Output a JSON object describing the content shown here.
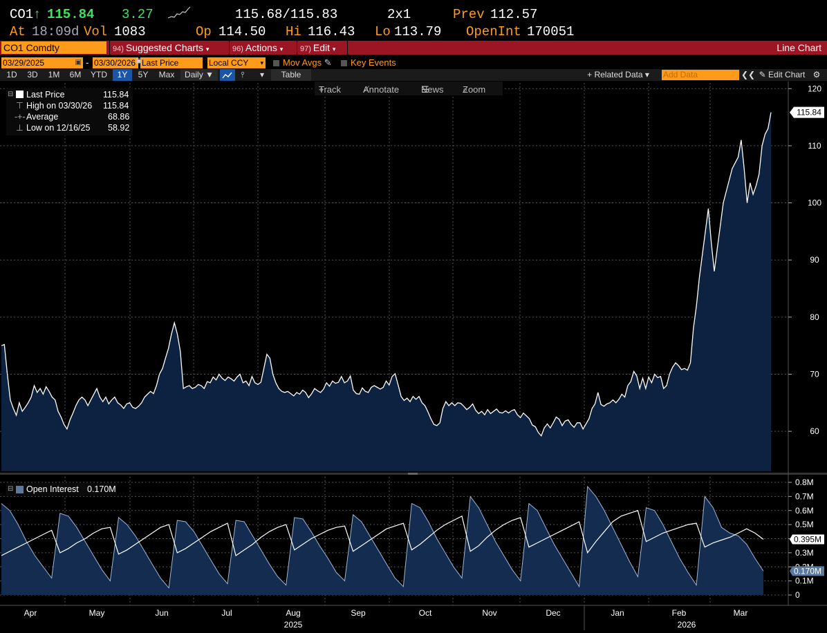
{
  "quote": {
    "ticker": "CO1",
    "arrow": "↑",
    "last": "115.84",
    "change": "3.27",
    "bid_ask": "115.68/115.83",
    "size": "2x1",
    "prev_label": "Prev",
    "prev": "112.57",
    "at_label": "At",
    "time": "18:09d",
    "vol_label": "Vol",
    "vol": "1083",
    "op_label": "Op",
    "op": "114.50",
    "hi_label": "Hi",
    "hi": "116.43",
    "lo_label": "Lo",
    "lo": "113.79",
    "oi_label": "OpenInt",
    "oi": "170051"
  },
  "function_bar": {
    "security": "CO1 Comdty",
    "suggested_num": "94)",
    "suggested": "Suggested Charts",
    "actions_num": "96)",
    "actions": "Actions",
    "edit_num": "97)",
    "edit": "Edit",
    "chart_type": "Line Chart"
  },
  "controls": {
    "start_date": "03/29/2025",
    "dash": "-",
    "end_date": "03/30/2026",
    "field": "Last Price",
    "currency": "Local CCY",
    "mov_avgs": "Mov Avgs",
    "key_events": "Key Events",
    "periods": [
      "1D",
      "3D",
      "1M",
      "6M",
      "YTD",
      "1Y",
      "5Y",
      "Max"
    ],
    "selected_period": "1Y",
    "frequency": "Daily",
    "table": "Table",
    "related_data": "+ Related Data",
    "add_data_placeholder": "Add Data",
    "edit_chart": "Edit Chart"
  },
  "tools": {
    "track": "Track",
    "annotate": "Annotate",
    "news": "News",
    "zoom": "Zoom"
  },
  "legend": {
    "last_label": "Last Price",
    "last_value": "115.84",
    "high_label": "High on 03/30/26",
    "high_value": "115.84",
    "avg_label": "Average",
    "avg_value": "68.86",
    "low_label": "Low on 12/16/25",
    "low_value": "58.92"
  },
  "oi_legend": {
    "label": "Open Interest",
    "value": "0.170M"
  },
  "colors": {
    "orange": "#ff9b1a",
    "red_bar": "#9b1525",
    "fill": "#0d2240",
    "oi_fill": "#142c50"
  },
  "chart_data": [
    {
      "type": "area",
      "title": "",
      "series": [
        {
          "name": "Last Price",
          "values": [
            75,
            75.2,
            70,
            65.5,
            64,
            62.8,
            65,
            63.5,
            64.2,
            65,
            66,
            68,
            66.8,
            67.5,
            66.5,
            67.8,
            67,
            66,
            65.5,
            63.5,
            62.5,
            61.2,
            60.4,
            62,
            63.2,
            64.5,
            65.5,
            66,
            65.5,
            64.5,
            65.5,
            66.5,
            67.5,
            66,
            65.2,
            66,
            64.8,
            65.5,
            66,
            65,
            64.6,
            64,
            64.8,
            65,
            64.2,
            64,
            64.4,
            65,
            66,
            66.5,
            67,
            66.6,
            68,
            70,
            71,
            72.8,
            74.5,
            77,
            79,
            77,
            74,
            67.5,
            67.8,
            68,
            67.5,
            67.7,
            68.2,
            68,
            67.5,
            68.7,
            68.5,
            69.5,
            69,
            70,
            69.3,
            68.9,
            69.5,
            69.2,
            68.8,
            69.5,
            70,
            68.5,
            68.8,
            68,
            69.6,
            68.5,
            68.2,
            68.6,
            71,
            73.5,
            72.8,
            70,
            68.5,
            67.5,
            67,
            66.8,
            67,
            66.6,
            66.2,
            66.8,
            66.5,
            67.2,
            66.8,
            65.9,
            66.6,
            67.5,
            67.1,
            66.8,
            67.4,
            68.5,
            67.9,
            68.8,
            68.4,
            68.6,
            69.6,
            68.5,
            68.8,
            69.7,
            67.2,
            66.6,
            66.5,
            67.6,
            67,
            66.8,
            67.7,
            68,
            67.7,
            67.4,
            67.7,
            68.8,
            68.1,
            69.6,
            70.1,
            68.1,
            66.1,
            65.4,
            65.8,
            65.2,
            66.1,
            65.6,
            66.1,
            65,
            64.5,
            63.4,
            62.2,
            61.2,
            61,
            61.5,
            64,
            65.2,
            64.5,
            65,
            64.5,
            65,
            64.9,
            64.4,
            63.8,
            64.2,
            64.8,
            63.7,
            63.1,
            63.5,
            62.9,
            63.8,
            63.1,
            63.5,
            63.9,
            63.3,
            63.2,
            63.6,
            63.2,
            63.6,
            63.8,
            62.9,
            62.4,
            63.2,
            62.7,
            62.2,
            61.1,
            60.8,
            59.8,
            59.2,
            60.6,
            61.3,
            60.6,
            61.5,
            62.5,
            62.1,
            61,
            61.8,
            62,
            61.2,
            60.7,
            61.5,
            61.5,
            60.4,
            61.3,
            62.2,
            64,
            64.8,
            66.8,
            64.7,
            64.4,
            64.8,
            65,
            65.5,
            65,
            65.6,
            66.5,
            66,
            68,
            68.7,
            70.5,
            69.7,
            67.5,
            69.3,
            67.5,
            69.5,
            68.5,
            70,
            69.4,
            69.6,
            67.5,
            68,
            70,
            71.2,
            72,
            71.5,
            70.8,
            71,
            70.7,
            72,
            78,
            82,
            87,
            91,
            95,
            99,
            93,
            88,
            92,
            96,
            100,
            102,
            104,
            106,
            107,
            108,
            111,
            106,
            100,
            103.5,
            101.5,
            103,
            105,
            110,
            112,
            113,
            115.84
          ],
          "fill": true
        }
      ],
      "x_tick_labels": [
        "Apr",
        "May",
        "Jun",
        "Jul",
        "Aug",
        "Sep",
        "Oct",
        "Nov",
        "Dec",
        "Jan",
        "Feb",
        "Mar"
      ],
      "year_labels": [
        "2025",
        "2026"
      ],
      "y_tick_labels": [
        "60",
        "70",
        "80",
        "90",
        "100",
        "110",
        "120"
      ],
      "ylim": [
        53,
        121
      ],
      "last_value_label": "115.84",
      "grid": true
    },
    {
      "type": "area",
      "title": "",
      "series": [
        {
          "name": "Open Interest",
          "values": [
            0.65,
            0.6,
            0.5,
            0.38,
            0.28,
            0.2,
            0.12,
            0.58,
            0.56,
            0.48,
            0.38,
            0.28,
            0.18,
            0.1,
            0.55,
            0.5,
            0.42,
            0.32,
            0.22,
            0.12,
            0.05,
            0.53,
            0.52,
            0.45,
            0.35,
            0.25,
            0.15,
            0.08,
            0.53,
            0.52,
            0.42,
            0.32,
            0.22,
            0.13,
            0.07,
            0.55,
            0.54,
            0.45,
            0.35,
            0.26,
            0.16,
            0.1,
            0.57,
            0.52,
            0.42,
            0.32,
            0.22,
            0.12,
            0.06,
            0.65,
            0.62,
            0.52,
            0.4,
            0.3,
            0.2,
            0.12,
            0.7,
            0.62,
            0.5,
            0.38,
            0.28,
            0.18,
            0.1,
            0.65,
            0.6,
            0.48,
            0.36,
            0.26,
            0.16,
            0.06,
            0.77,
            0.7,
            0.6,
            0.48,
            0.36,
            0.24,
            0.13,
            0.62,
            0.6,
            0.5,
            0.38,
            0.26,
            0.16,
            0.07,
            0.7,
            0.62,
            0.48,
            0.44,
            0.42,
            0.36,
            0.26,
            0.17
          ]
        },
        {
          "name": "",
          "values": [
            0.28,
            0.31,
            0.34,
            0.37,
            0.4,
            0.43,
            0.46,
            0.3,
            0.33,
            0.37,
            0.4,
            0.44,
            0.47,
            0.48,
            0.29,
            0.32,
            0.36,
            0.4,
            0.44,
            0.48,
            0.5,
            0.3,
            0.33,
            0.37,
            0.41,
            0.45,
            0.48,
            0.51,
            0.28,
            0.32,
            0.36,
            0.41,
            0.45,
            0.48,
            0.5,
            0.32,
            0.36,
            0.4,
            0.43,
            0.46,
            0.48,
            0.49,
            0.31,
            0.35,
            0.39,
            0.43,
            0.47,
            0.49,
            0.51,
            0.32,
            0.36,
            0.41,
            0.46,
            0.5,
            0.53,
            0.56,
            0.31,
            0.35,
            0.41,
            0.46,
            0.5,
            0.53,
            0.55,
            0.34,
            0.37,
            0.4,
            0.43,
            0.46,
            0.49,
            0.52,
            0.3,
            0.38,
            0.45,
            0.52,
            0.56,
            0.58,
            0.6,
            0.38,
            0.41,
            0.44,
            0.46,
            0.48,
            0.5,
            0.51,
            0.34,
            0.37,
            0.39,
            0.41,
            0.44,
            0.47,
            0.44,
            0.395
          ]
        }
      ],
      "y_tick_labels": [
        "0",
        "0.1M",
        "0.2M",
        "0.3M",
        "0.4M",
        "0.5M",
        "0.6M",
        "0.7M",
        "0.8M"
      ],
      "ylim": [
        0,
        0.82
      ],
      "oi_value_label": "0.170M",
      "white_value_label": "0.395M",
      "grid": true
    }
  ]
}
